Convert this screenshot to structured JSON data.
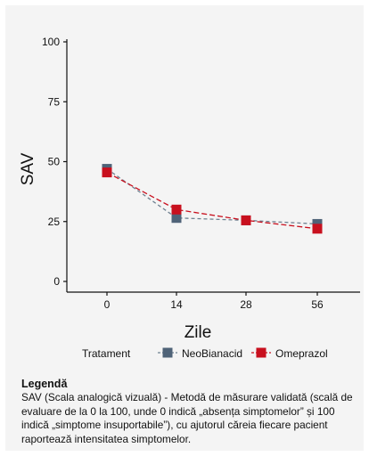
{
  "chart_data": {
    "type": "line",
    "categories": [
      "0",
      "14",
      "28",
      "56"
    ],
    "xlabel": "Zile",
    "ylabel": "SAV",
    "ylim": [
      0,
      100
    ],
    "yticks": [
      0,
      25,
      50,
      75,
      100
    ],
    "grid": false,
    "legend_title": "Tratament",
    "legend_position": "bottom",
    "series": [
      {
        "name": "NeoBianacid",
        "values": [
          47,
          26.5,
          25.5,
          24
        ],
        "color": "#4f6378",
        "line_color": "#6e8090"
      },
      {
        "name": "Omeprazol",
        "values": [
          45.5,
          30,
          25.5,
          22
        ],
        "color": "#c8101e",
        "line_color": "#c8101e"
      }
    ]
  },
  "note": {
    "title": "Legendă",
    "text": "SAV (Scala analogică vizuală) - Metodă de măsurare validată (scală de evaluare de la 0 la 100, unde 0 indică „absența simptomelor” și 100 indică „simptome insuportabile”), cu ajutorul căreia fiecare pacient raportează intensitatea simptomelor."
  }
}
